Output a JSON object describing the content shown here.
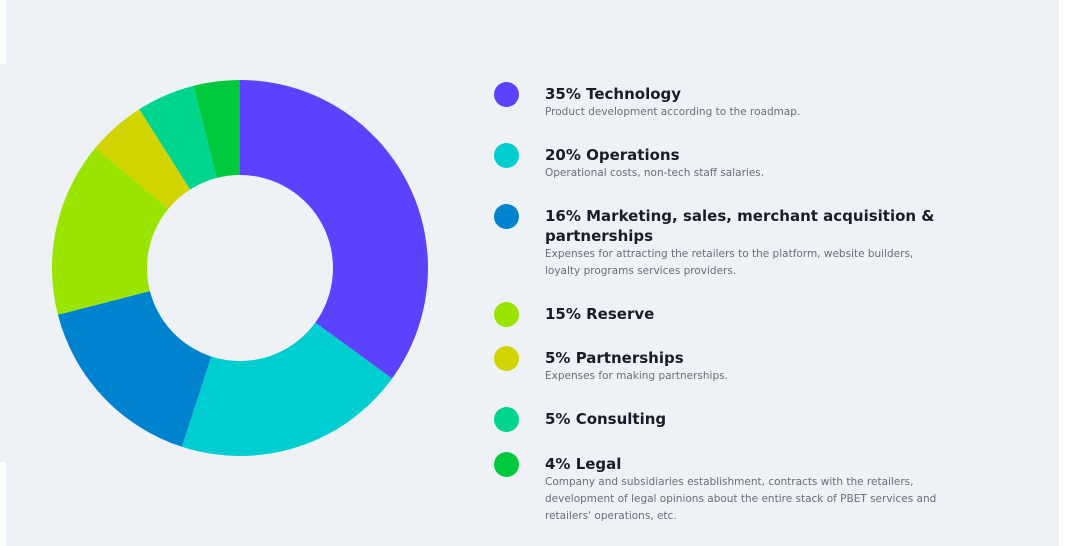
{
  "chart_data": {
    "type": "pie",
    "donut": true,
    "categories": [
      "Technology",
      "Operations",
      "Marketing, sales, merchant acquisition & partnerships",
      "Reserve",
      "Partnerships",
      "Consulting",
      "Legal"
    ],
    "values": [
      35,
      20,
      16,
      15,
      5,
      5,
      4
    ],
    "unit": "%",
    "colors": [
      "#5b43fe",
      "#00cdd0",
      "#0083cf",
      "#9ae400",
      "#d2d400",
      "#00d58e",
      "#00c93e"
    ]
  },
  "legend": [
    {
      "title": "35% Technology",
      "description": "Product development according to the roadmap.",
      "color": "#5b43fe"
    },
    {
      "title": "20% Operations",
      "description": "Operational costs, non-tech staff salaries.",
      "color": "#00cdd0"
    },
    {
      "title": "16% Marketing, sales, merchant acquisition & partnerships",
      "description": "Expenses for attracting the retailers to the platform, website builders, loyalty programs services providers.",
      "color": "#0083cf"
    },
    {
      "title": "15% Reserve",
      "description": "",
      "color": "#9ae400"
    },
    {
      "title": "5% Partnerships",
      "description": "Expenses for making partnerships.",
      "color": "#d2d400"
    },
    {
      "title": "5% Consulting",
      "description": "",
      "color": "#00d58e"
    },
    {
      "title": "4% Legal",
      "description": "Company and subsidiaries establishment, contracts with the retailers, development of legal opinions about the entire stack of PBET services and retailers' operations, etc.",
      "color": "#00c93e"
    }
  ]
}
